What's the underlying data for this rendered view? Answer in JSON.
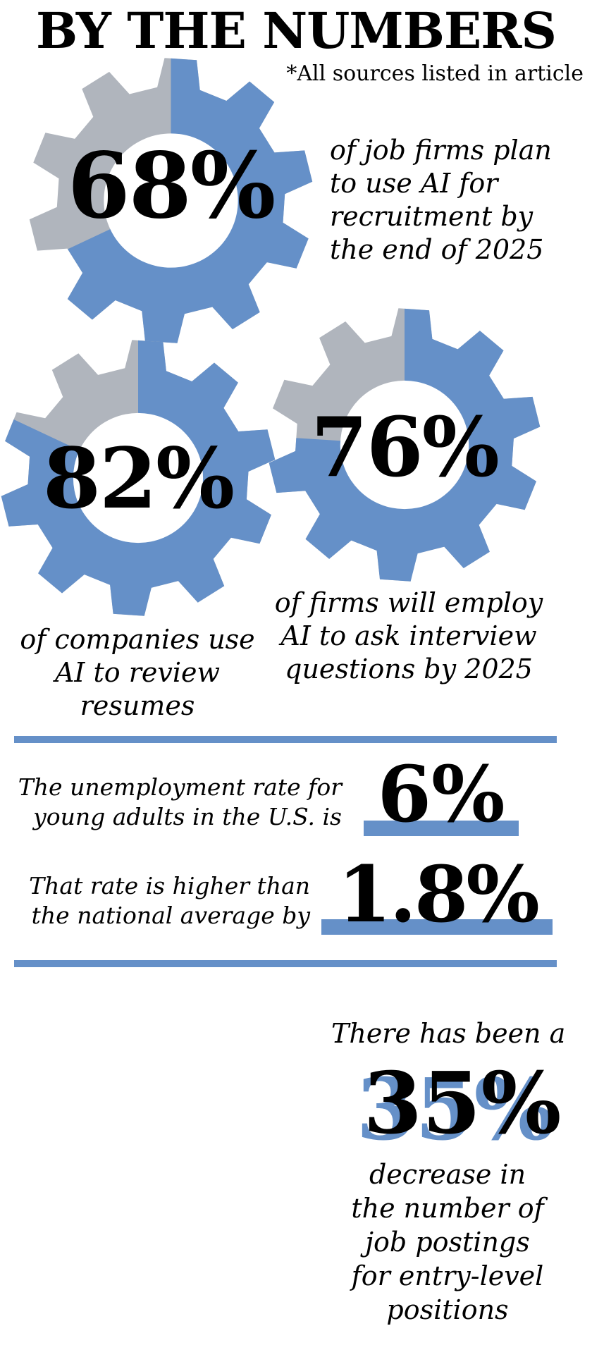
{
  "header": {
    "title": "BY THE NUMBERS",
    "sources_note": "*All sources listed in article"
  },
  "gear_stats": [
    {
      "value": "68%",
      "fraction": 0.68,
      "caption_lines": [
        "of job firms plan",
        "to use AI for",
        "recruitment by",
        "the end of 2025"
      ]
    },
    {
      "value": "82%",
      "fraction": 0.82,
      "caption_lines": [
        "of companies use",
        "AI to review",
        "resumes"
      ]
    },
    {
      "value": "76%",
      "fraction": 0.76,
      "caption_lines": [
        "of firms will employ",
        "AI to ask interview",
        "questions by 2025"
      ]
    }
  ],
  "unemployment": {
    "label_lines": [
      "The unemployment rate for",
      "young adults in the U.S. is"
    ],
    "value": "6%"
  },
  "difference": {
    "label_lines": [
      "That rate is higher than",
      "the national average by"
    ],
    "value": "1.8%"
  },
  "postings": {
    "intro": "There has been a",
    "value": "35%",
    "caption_lines": [
      "decrease in",
      "the number of",
      "job postings",
      "for entry-level",
      "positions"
    ]
  },
  "colors": {
    "accent_blue": "#6590c8",
    "gear_gray": "#b0b5bd",
    "text": "#000000",
    "background": "#ffffff"
  }
}
